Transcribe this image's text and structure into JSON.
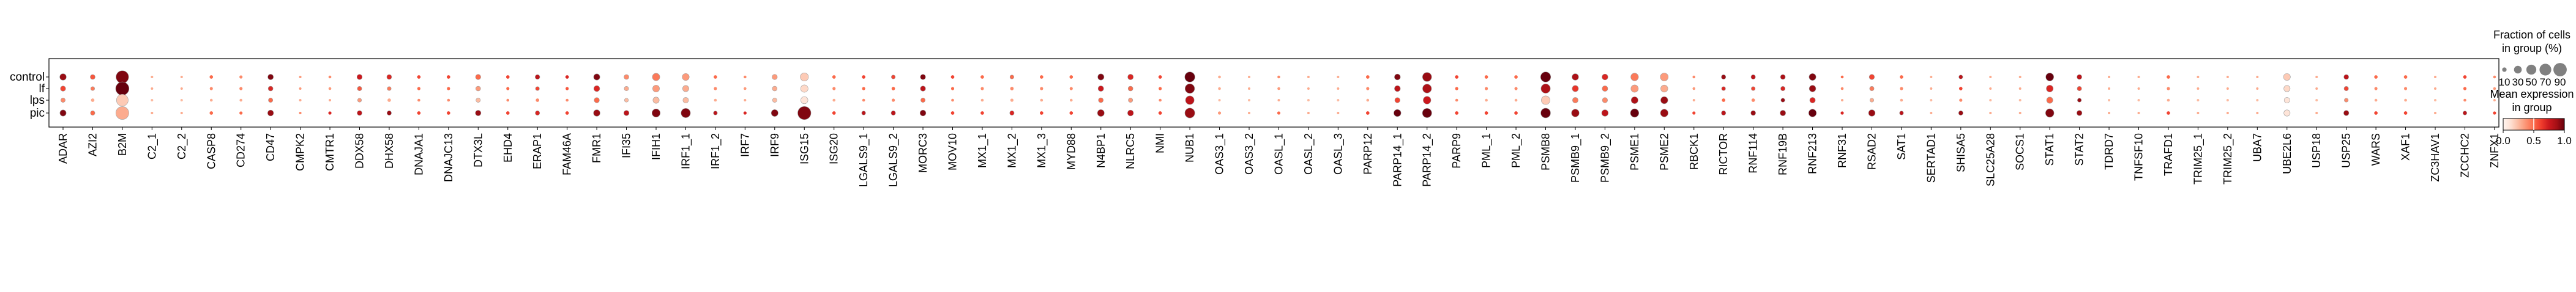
{
  "chart_data": {
    "type": "dotplot",
    "groups": [
      "control",
      "lf",
      "lps",
      "pic"
    ],
    "genes": [
      "ADAR",
      "AZI2",
      "B2M",
      "C2_1",
      "C2_2",
      "CASP8",
      "CD274",
      "CD47",
      "CMPK2",
      "CMTR1",
      "DDX58",
      "DHX58",
      "DNAJA1",
      "DNAJC13",
      "DTX3L",
      "EHD4",
      "ERAP1",
      "FAM46A",
      "FMR1",
      "IFI35",
      "IFIH1",
      "IRF1_1",
      "IRF1_2",
      "IRF7",
      "IRF9",
      "ISG15",
      "ISG20",
      "LGALS9_1",
      "LGALS9_2",
      "MORC3",
      "MOV10",
      "MX1_1",
      "MX1_2",
      "MX1_3",
      "MYD88",
      "N4BP1",
      "NLRC5",
      "NMI",
      "NUB1",
      "OAS3_1",
      "OAS3_2",
      "OASL_1",
      "OASL_2",
      "OASL_3",
      "PARP12",
      "PARP14_1",
      "PARP14_2",
      "PARP9",
      "PML_1",
      "PML_2",
      "PSMB8",
      "PSMB9_1",
      "PSMB9_2",
      "PSME1",
      "PSME2",
      "RBCK1",
      "RICTOR",
      "RNF114",
      "RNF19B",
      "RNF213",
      "RNF31",
      "RSAD2",
      "SAT1",
      "SERTAD1",
      "SHISA5",
      "SLC25A28",
      "SOCS1",
      "STAT1",
      "STAT2",
      "TDRD7",
      "TNFSF10",
      "TRAFD1",
      "TRIM25_1",
      "TRIM25_2",
      "UBA7",
      "UBE2L6",
      "USP18",
      "USP25",
      "WARS",
      "XAF1",
      "ZC3HAV1",
      "ZCCHC2",
      "ZNFX1"
    ],
    "fraction": {
      "control": [
        22,
        12,
        80,
        3,
        3,
        6,
        5,
        16,
        3,
        4,
        14,
        12,
        6,
        6,
        14,
        6,
        11,
        6,
        20,
        12,
        28,
        25,
        6,
        4,
        14,
        34,
        6,
        6,
        8,
        14,
        6,
        6,
        8,
        6,
        6,
        20,
        16,
        6,
        52,
        4,
        3,
        4,
        3,
        3,
        6,
        18,
        42,
        6,
        6,
        6,
        52,
        22,
        18,
        30,
        32,
        4,
        10,
        10,
        12,
        24,
        4,
        14,
        6,
        3,
        8,
        3,
        3,
        32,
        12,
        3,
        3,
        6,
        3,
        3,
        3,
        24,
        3,
        12,
        6,
        6,
        3,
        6,
        4
      ],
      "lf": [
        14,
        8,
        90,
        3,
        3,
        5,
        5,
        12,
        3,
        4,
        10,
        8,
        5,
        5,
        12,
        5,
        8,
        5,
        18,
        10,
        24,
        20,
        5,
        4,
        12,
        28,
        5,
        5,
        6,
        14,
        5,
        5,
        6,
        5,
        5,
        16,
        12,
        5,
        46,
        4,
        3,
        4,
        3,
        3,
        5,
        18,
        40,
        5,
        5,
        5,
        44,
        20,
        16,
        28,
        26,
        4,
        8,
        8,
        10,
        22,
        4,
        10,
        5,
        3,
        6,
        3,
        3,
        24,
        10,
        3,
        3,
        5,
        3,
        3,
        3,
        20,
        3,
        10,
        5,
        5,
        3,
        5,
        4
      ],
      "lps": [
        10,
        6,
        70,
        3,
        3,
        4,
        4,
        10,
        3,
        3,
        8,
        6,
        4,
        4,
        10,
        4,
        6,
        4,
        14,
        8,
        20,
        16,
        4,
        3,
        10,
        26,
        4,
        4,
        5,
        10,
        4,
        4,
        5,
        4,
        4,
        12,
        10,
        4,
        38,
        3,
        3,
        3,
        3,
        3,
        4,
        14,
        30,
        4,
        4,
        4,
        38,
        16,
        14,
        24,
        26,
        3,
        6,
        6,
        8,
        16,
        3,
        8,
        4,
        3,
        5,
        3,
        3,
        20,
        8,
        3,
        3,
        4,
        3,
        3,
        3,
        16,
        3,
        8,
        4,
        4,
        3,
        4,
        3
      ],
      "pic": [
        20,
        10,
        85,
        3,
        3,
        6,
        5,
        18,
        3,
        5,
        12,
        10,
        6,
        6,
        16,
        6,
        10,
        6,
        22,
        14,
        34,
        44,
        8,
        5,
        24,
        88,
        6,
        8,
        10,
        18,
        6,
        6,
        10,
        6,
        6,
        24,
        18,
        6,
        50,
        5,
        3,
        5,
        3,
        3,
        6,
        26,
        44,
        6,
        6,
        6,
        48,
        30,
        22,
        36,
        30,
        5,
        10,
        12,
        16,
        30,
        5,
        22,
        8,
        3,
        10,
        3,
        3,
        36,
        14,
        3,
        3,
        6,
        3,
        3,
        3,
        20,
        3,
        14,
        6,
        6,
        3,
        8,
        5
      ]
    },
    "expression": {
      "control": [
        0.9,
        0.55,
        0.95,
        0.3,
        0.3,
        0.5,
        0.4,
        0.95,
        0.35,
        0.4,
        0.75,
        0.7,
        0.6,
        0.6,
        0.5,
        0.6,
        0.8,
        0.7,
        0.95,
        0.4,
        0.45,
        0.35,
        0.5,
        0.4,
        0.35,
        0.2,
        0.5,
        0.6,
        0.6,
        0.95,
        0.6,
        0.5,
        0.5,
        0.5,
        0.5,
        0.95,
        0.7,
        0.6,
        1.0,
        0.3,
        0.3,
        0.4,
        0.3,
        0.3,
        0.5,
        0.95,
        0.9,
        0.6,
        0.5,
        0.5,
        1.0,
        0.85,
        0.7,
        0.45,
        0.35,
        0.4,
        0.9,
        0.8,
        0.85,
        0.95,
        0.5,
        0.6,
        0.5,
        0.3,
        0.8,
        0.3,
        0.3,
        1.0,
        0.8,
        0.3,
        0.3,
        0.5,
        0.3,
        0.3,
        0.3,
        0.2,
        0.3,
        0.8,
        0.5,
        0.5,
        0.3,
        0.6,
        0.4
      ],
      "lf": [
        0.6,
        0.45,
        1.0,
        0.3,
        0.3,
        0.4,
        0.4,
        0.7,
        0.35,
        0.35,
        0.55,
        0.45,
        0.5,
        0.5,
        0.35,
        0.5,
        0.6,
        0.55,
        0.7,
        0.3,
        0.35,
        0.3,
        0.4,
        0.35,
        0.3,
        0.15,
        0.4,
        0.5,
        0.5,
        0.8,
        0.5,
        0.4,
        0.4,
        0.4,
        0.4,
        0.75,
        0.5,
        0.5,
        0.95,
        0.3,
        0.3,
        0.35,
        0.3,
        0.3,
        0.4,
        0.8,
        0.85,
        0.5,
        0.4,
        0.4,
        0.85,
        0.65,
        0.5,
        0.35,
        0.3,
        0.35,
        0.7,
        0.6,
        0.7,
        0.9,
        0.4,
        0.45,
        0.4,
        0.3,
        0.6,
        0.3,
        0.3,
        0.7,
        0.6,
        0.3,
        0.3,
        0.4,
        0.3,
        0.3,
        0.3,
        0.15,
        0.3,
        0.6,
        0.4,
        0.4,
        0.3,
        0.5,
        0.35
      ],
      "lps": [
        0.4,
        0.3,
        0.2,
        0.25,
        0.25,
        0.3,
        0.3,
        0.5,
        0.3,
        0.3,
        0.35,
        0.3,
        0.4,
        0.4,
        0.25,
        0.4,
        0.4,
        0.4,
        0.5,
        0.25,
        0.25,
        0.25,
        0.3,
        0.3,
        0.25,
        0.1,
        0.3,
        0.4,
        0.4,
        0.5,
        0.4,
        0.3,
        0.3,
        0.3,
        0.3,
        0.5,
        0.35,
        0.4,
        0.8,
        0.25,
        0.25,
        0.3,
        0.25,
        0.25,
        0.3,
        0.6,
        0.75,
        0.4,
        0.3,
        0.3,
        0.2,
        0.45,
        0.4,
        0.85,
        0.9,
        0.3,
        0.5,
        0.4,
        0.9,
        0.7,
        0.3,
        0.3,
        0.3,
        0.25,
        0.4,
        0.25,
        0.25,
        0.5,
        0.9,
        0.25,
        0.25,
        0.3,
        0.25,
        0.25,
        0.25,
        0.1,
        0.25,
        0.4,
        0.3,
        0.3,
        0.25,
        0.4,
        0.3
      ],
      "pic": [
        0.95,
        0.5,
        0.3,
        0.3,
        0.3,
        0.5,
        0.5,
        0.9,
        0.4,
        0.7,
        0.8,
        0.9,
        0.6,
        0.6,
        0.9,
        0.6,
        0.7,
        0.6,
        0.9,
        0.8,
        0.95,
        0.95,
        0.8,
        0.7,
        0.95,
        0.95,
        0.6,
        0.8,
        0.8,
        0.95,
        0.6,
        0.6,
        0.7,
        0.6,
        0.6,
        0.9,
        0.8,
        0.6,
        0.9,
        0.35,
        0.3,
        0.5,
        0.3,
        0.3,
        0.6,
        1.0,
        1.0,
        0.6,
        0.6,
        0.6,
        1.0,
        0.9,
        0.8,
        1.0,
        0.9,
        0.6,
        0.8,
        0.9,
        0.9,
        1.0,
        0.7,
        0.9,
        0.8,
        0.3,
        0.9,
        0.3,
        0.3,
        0.95,
        0.9,
        0.3,
        0.3,
        0.6,
        0.3,
        0.3,
        0.3,
        0.1,
        0.3,
        0.9,
        0.6,
        0.6,
        0.3,
        0.8,
        0.6
      ]
    },
    "size_legend": {
      "title_line1": "Fraction of cells",
      "title_line2": "in group (%)",
      "values": [
        10,
        30,
        50,
        70,
        90
      ],
      "labels": [
        "10",
        "30",
        "50",
        "70",
        "90"
      ]
    },
    "color_legend": {
      "title_line1": "Mean expression",
      "title_line2": "in group",
      "range": [
        0,
        1
      ],
      "ticks": [
        "0.0",
        "0.5",
        "1.0"
      ],
      "colormap": "Reds",
      "color_low": "#fff5f0",
      "color_high": "#67000d"
    },
    "grid": false,
    "legend_placement": "right"
  }
}
